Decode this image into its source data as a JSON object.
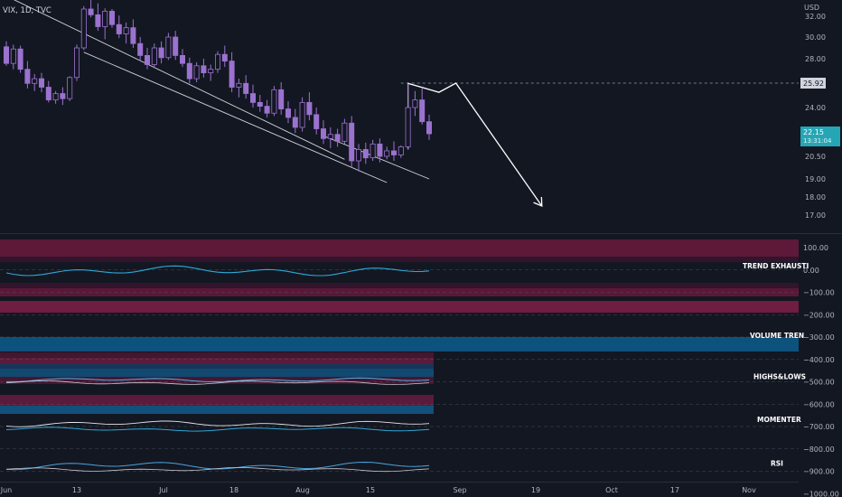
{
  "header": {
    "title": "VIX, 1D, TVC"
  },
  "price_axis": {
    "currency": "USD",
    "ticks": [
      "32.00",
      "30.00",
      "28.00",
      "24.00",
      "20.50",
      "19.00",
      "18.00",
      "17.00"
    ],
    "last_price_label": "22.15",
    "countdown_label": "13:31:04",
    "target_label": "25.92"
  },
  "indicator_axis": {
    "ticks": [
      "100.00",
      "0.00",
      "−100.00",
      "−200.00",
      "−300.00",
      "−400.00",
      "−500.00",
      "−600.00",
      "−700.00",
      "−800.00",
      "−900.00",
      "−1000.00"
    ]
  },
  "time_axis": {
    "labels": [
      "Jun",
      "13",
      "Jul",
      "18",
      "Aug",
      "15",
      "Sep",
      "19",
      "Oct",
      "17",
      "Nov"
    ]
  },
  "indicator_labels": [
    "TREND EXHAUSTI",
    "VOLUME TREN",
    "HIGHS&LOWS",
    "MOMENTER",
    "RSI"
  ],
  "colors": {
    "background": "#131722",
    "candle_up": "#9b72cf",
    "candle_down": "#9b72cf",
    "trendline": "#d1d4dc",
    "projection": "#ffffff",
    "trend_exhaustion": "#2fa8d6",
    "volume_band_red": "#7a1e44",
    "volume_band_blue": "#0d5887",
    "last_price_bg": "#26a6b4"
  },
  "chart_data": {
    "type": "candlestick",
    "symbol": "VIX",
    "interval": "1D",
    "source": "TVC",
    "x_axis_labels": [
      "Jun",
      "13",
      "Jul",
      "18",
      "Aug",
      "15",
      "Sep",
      "19",
      "Oct",
      "17",
      "Nov"
    ],
    "y_axis_ticks": [
      32,
      30,
      28,
      24,
      20.5,
      19,
      18,
      17
    ],
    "y_unit": "USD",
    "last_price": 22.15,
    "target_level": 25.92,
    "candles": [
      [
        29.1,
        29.6,
        27.4,
        27.6
      ],
      [
        27.6,
        29.3,
        27.1,
        28.9
      ],
      [
        28.9,
        29.2,
        26.8,
        27.1
      ],
      [
        27.1,
        27.8,
        25.5,
        25.9
      ],
      [
        25.9,
        26.7,
        25.3,
        26.3
      ],
      [
        26.3,
        26.8,
        25.2,
        25.6
      ],
      [
        25.6,
        26.1,
        24.4,
        24.6
      ],
      [
        24.6,
        25.3,
        24.3,
        25.1
      ],
      [
        25.1,
        25.6,
        24.2,
        24.7
      ],
      [
        24.7,
        26.5,
        24.5,
        26.4
      ],
      [
        26.4,
        29.3,
        26.1,
        29.0
      ],
      [
        29.0,
        33.4,
        28.8,
        33.0
      ],
      [
        33.0,
        34.5,
        31.9,
        32.2
      ],
      [
        32.2,
        33.8,
        30.6,
        31.0
      ],
      [
        31.0,
        33.1,
        29.8,
        32.7
      ],
      [
        32.7,
        33.0,
        30.9,
        31.2
      ],
      [
        31.2,
        32.1,
        29.9,
        30.3
      ],
      [
        30.3,
        31.4,
        29.4,
        30.9
      ],
      [
        30.9,
        31.7,
        29.0,
        29.4
      ],
      [
        29.4,
        30.0,
        27.8,
        28.3
      ],
      [
        28.3,
        29.0,
        27.1,
        27.5
      ],
      [
        27.5,
        29.4,
        27.2,
        29.0
      ],
      [
        29.0,
        29.6,
        27.6,
        28.1
      ],
      [
        28.1,
        30.4,
        27.9,
        30.0
      ],
      [
        30.0,
        30.6,
        27.9,
        28.3
      ],
      [
        28.3,
        28.9,
        27.3,
        27.6
      ],
      [
        27.6,
        28.1,
        25.9,
        26.3
      ],
      [
        26.3,
        27.7,
        26.0,
        27.4
      ],
      [
        27.4,
        28.0,
        26.4,
        26.8
      ],
      [
        26.8,
        27.5,
        26.1,
        27.1
      ],
      [
        27.1,
        28.7,
        26.8,
        28.4
      ],
      [
        28.4,
        29.2,
        27.3,
        27.8
      ],
      [
        27.8,
        28.6,
        25.2,
        25.6
      ],
      [
        25.6,
        26.3,
        24.8,
        25.9
      ],
      [
        25.9,
        26.6,
        24.7,
        25.1
      ],
      [
        25.1,
        25.8,
        24.0,
        24.4
      ],
      [
        24.4,
        25.0,
        23.7,
        24.1
      ],
      [
        24.1,
        24.6,
        23.3,
        23.6
      ],
      [
        23.6,
        25.7,
        23.4,
        25.4
      ],
      [
        25.4,
        26.0,
        23.5,
        23.9
      ],
      [
        23.9,
        24.5,
        22.9,
        23.3
      ],
      [
        23.3,
        23.9,
        22.2,
        22.6
      ],
      [
        22.6,
        24.8,
        22.3,
        24.4
      ],
      [
        24.4,
        25.2,
        23.1,
        23.5
      ],
      [
        23.5,
        24.0,
        22.1,
        22.5
      ],
      [
        22.5,
        23.1,
        21.4,
        21.8
      ],
      [
        21.8,
        22.6,
        21.1,
        22.1
      ],
      [
        22.1,
        22.5,
        21.2,
        21.6
      ],
      [
        21.6,
        23.2,
        21.4,
        22.9
      ],
      [
        22.9,
        23.4,
        19.8,
        20.2
      ],
      [
        20.2,
        21.4,
        19.5,
        21.0
      ],
      [
        21.0,
        21.5,
        20.0,
        20.4
      ],
      [
        20.4,
        21.7,
        20.2,
        21.4
      ],
      [
        21.4,
        21.8,
        20.1,
        20.5
      ],
      [
        20.5,
        21.2,
        20.3,
        20.9
      ],
      [
        20.9,
        21.6,
        20.2,
        20.6
      ],
      [
        20.6,
        21.3,
        20.4,
        21.2
      ],
      [
        21.2,
        25.9,
        21.0,
        24.0
      ],
      [
        24.0,
        25.3,
        23.4,
        24.6
      ],
      [
        24.6,
        25.5,
        22.8,
        23.0
      ],
      [
        23.0,
        23.5,
        21.7,
        22.15
      ]
    ],
    "overlays": [
      {
        "name": "upper channel line",
        "points": [
          [
            0,
            34.8
          ],
          [
            48,
            20.3
          ]
        ]
      },
      {
        "name": "lower channel line",
        "points": [
          [
            11,
            28.6
          ],
          [
            54,
            18.8
          ]
        ]
      },
      {
        "name": "breakout line",
        "points": [
          [
            45,
            22.0
          ],
          [
            60,
            19.0
          ]
        ]
      },
      {
        "name": "target dashed line",
        "price": 25.92,
        "from": 56
      },
      {
        "name": "projection path",
        "points": [
          [
            57,
            21.0
          ],
          [
            57,
            25.9
          ],
          [
            61.4,
            25.2
          ],
          [
            63.8,
            25.92
          ],
          [
            76,
            17.5
          ]
        ]
      }
    ],
    "indicators": [
      {
        "name": "TREND EXHAUSTI",
        "axis_value": 0
      },
      {
        "name": "VOLUME TREN"
      },
      {
        "name": "HIGHS&LOWS"
      },
      {
        "name": "MOMENTER"
      },
      {
        "name": "RSI"
      }
    ]
  }
}
